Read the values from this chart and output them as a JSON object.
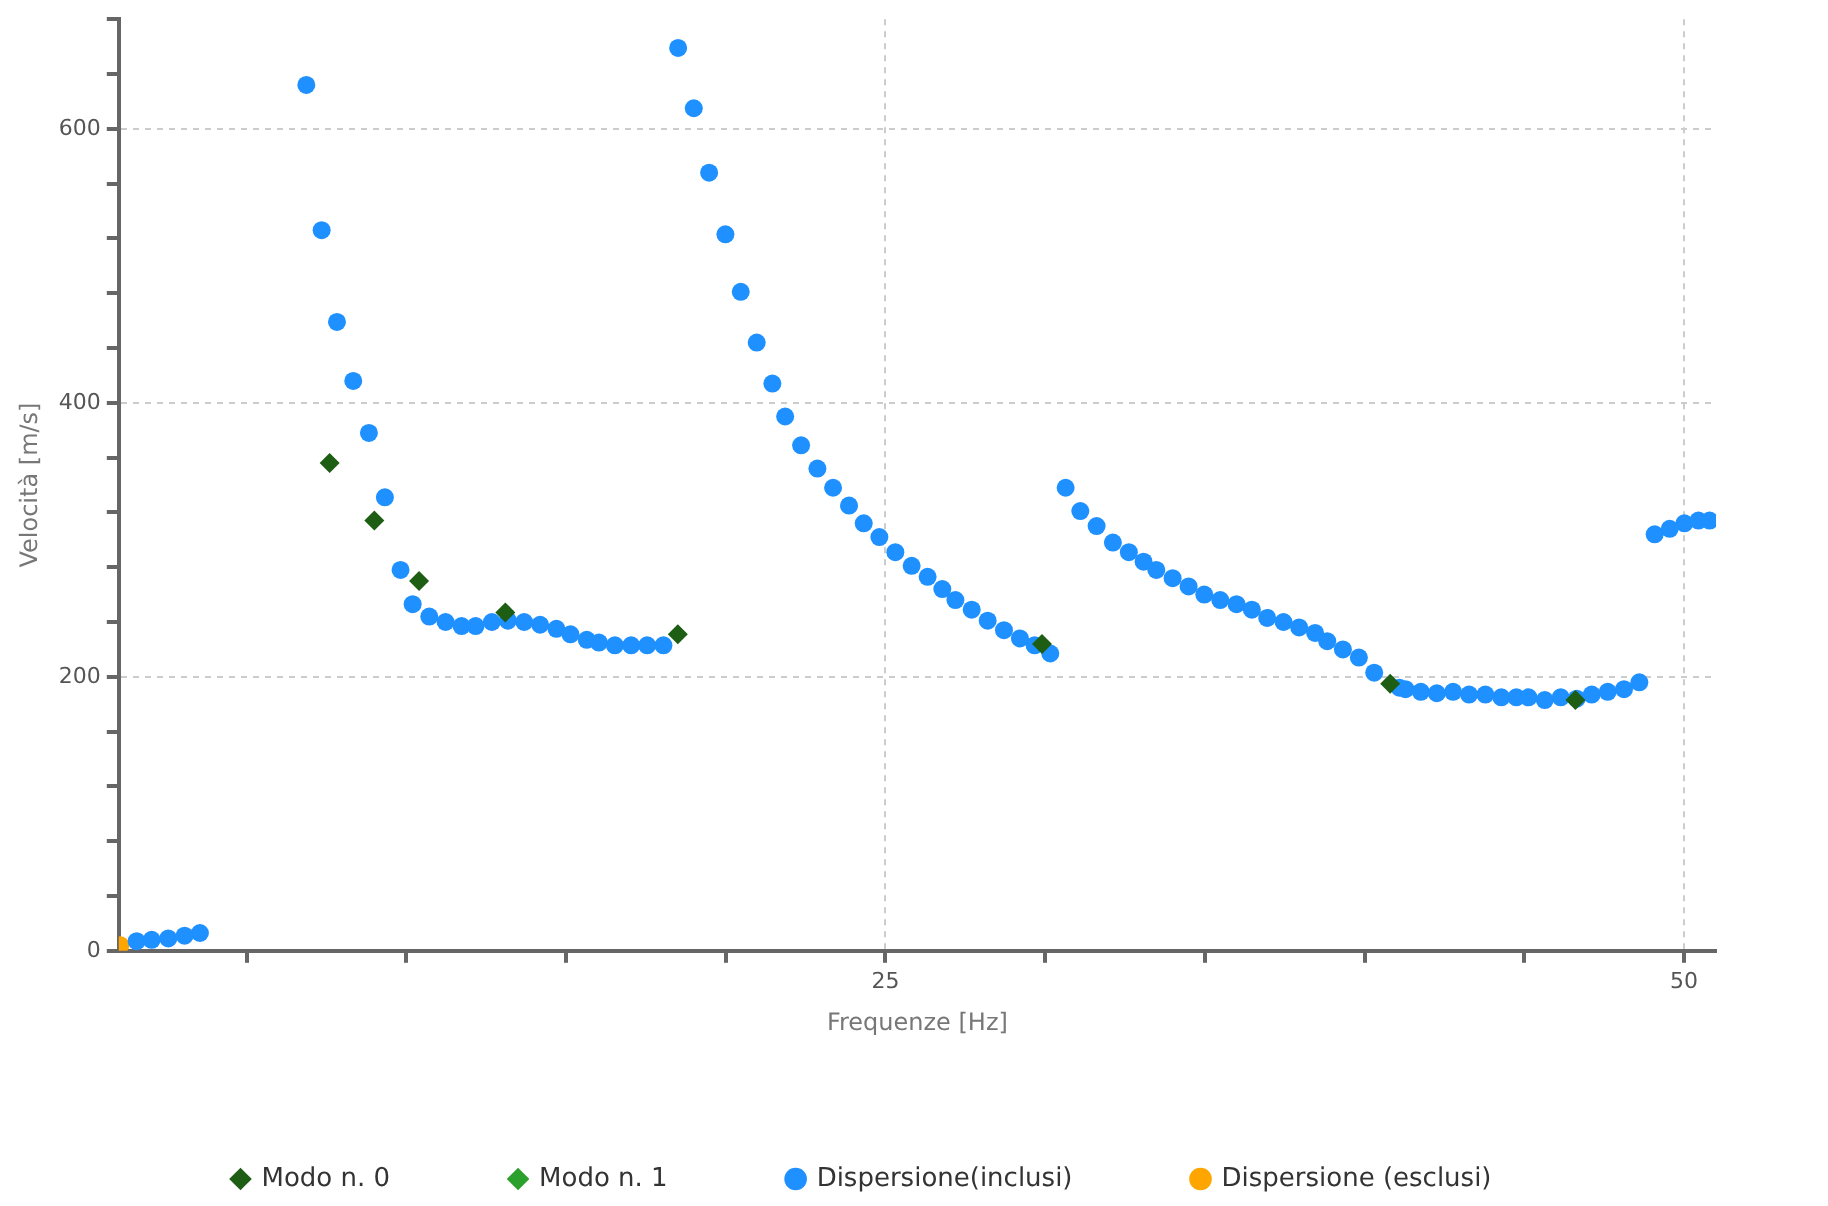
{
  "chart_data": {
    "type": "scatter",
    "xlabel": "Frequenze [Hz]",
    "ylabel": "Velocità [m/s]",
    "xlim": [
      1,
      51
    ],
    "xticks": [
      {
        "value": 5,
        "label": null
      },
      {
        "value": 10,
        "label": null
      },
      {
        "value": 15,
        "label": null
      },
      {
        "value": 20,
        "label": null
      },
      25,
      {
        "value": 30,
        "label": null
      },
      {
        "value": 35,
        "label": null
      },
      {
        "value": 40,
        "label": null
      },
      {
        "value": 45,
        "label": null
      },
      50
    ],
    "ylim": [
      0,
      680
    ],
    "yticks": [
      0,
      {
        "value": 40,
        "label": null
      },
      {
        "value": 80,
        "label": null
      },
      {
        "value": 120,
        "label": null
      },
      {
        "value": 160,
        "label": null
      },
      200,
      {
        "value": 240,
        "label": null
      },
      {
        "value": 280,
        "label": null
      },
      {
        "value": 320,
        "label": null
      },
      {
        "value": 360,
        "label": null
      },
      400,
      {
        "value": 440,
        "label": null
      },
      {
        "value": 480,
        "label": null
      },
      {
        "value": 520,
        "label": null
      },
      {
        "value": 560,
        "label": null
      },
      600,
      {
        "value": 640,
        "label": null
      },
      {
        "value": 680,
        "label": null
      }
    ],
    "grid": true,
    "legend": "bottom",
    "series": [
      {
        "name": "Modo n. 0",
        "color": "#1e5e14",
        "marker": "diamond",
        "x": [
          7.6,
          9.0,
          10.4,
          13.1,
          18.5,
          29.9,
          40.8,
          46.6
        ],
        "values": [
          356,
          314,
          270,
          247,
          231,
          224,
          195,
          183
        ]
      },
      {
        "name": "Modo n. 1",
        "color": "#2ca02c",
        "marker": "diamond"
      },
      {
        "name": "Dispersione(inclusi)",
        "color": "#1e90ff",
        "marker": "circle",
        "x": [
          1.56,
          2.03,
          2.55,
          3.06,
          3.54,
          6.87,
          7.35,
          7.83,
          8.34,
          8.83,
          9.33,
          9.82,
          10.2,
          10.72,
          11.23,
          11.73,
          12.17,
          12.68,
          13.18,
          13.69,
          14.19,
          14.7,
          15.14,
          15.65,
          16.03,
          16.53,
          17.04,
          17.54,
          18.05,
          18.51,
          19.0,
          19.48,
          19.99,
          20.47,
          20.97,
          21.46,
          21.86,
          22.36,
          22.87,
          23.36,
          23.86,
          24.32,
          24.81,
          25.31,
          25.82,
          26.32,
          26.78,
          27.19,
          27.7,
          28.2,
          28.71,
          29.21,
          29.67,
          30.16,
          30.64,
          31.1,
          31.61,
          32.12,
          32.62,
          33.08,
          33.48,
          33.99,
          34.49,
          34.98,
          35.48,
          35.99,
          36.47,
          36.95,
          37.46,
          37.95,
          38.45,
          38.83,
          39.32,
          39.82,
          40.3,
          41.09,
          41.28,
          41.76,
          42.26,
          42.77,
          43.27,
          43.78,
          44.28,
          44.75,
          45.13,
          45.64,
          46.14,
          46.64,
          47.11,
          47.61,
          48.12,
          48.6,
          49.08,
          49.55,
          50.01,
          50.45,
          50.8
        ],
        "values": [
          7,
          8,
          9,
          11,
          13,
          632,
          526,
          459,
          416,
          378,
          331,
          278,
          253,
          244,
          240,
          237,
          237,
          240,
          241,
          240,
          238,
          235,
          231,
          227,
          225,
          223,
          223,
          223,
          223,
          659,
          615,
          568,
          523,
          481,
          444,
          414,
          390,
          369,
          352,
          338,
          325,
          312,
          302,
          291,
          281,
          273,
          264,
          256,
          249,
          241,
          234,
          228,
          223,
          217,
          338,
          321,
          310,
          298,
          291,
          284,
          278,
          272,
          266,
          260,
          256,
          253,
          249,
          243,
          240,
          236,
          232,
          226,
          220,
          214,
          203,
          192,
          191,
          189,
          188,
          189,
          187,
          187,
          185,
          185,
          185,
          183,
          185,
          184,
          187,
          189,
          191,
          196,
          304,
          308,
          312,
          314,
          314
        ]
      },
      {
        "name": "Dispersione (esclusi)",
        "color": "#ffa500",
        "marker": "circle",
        "x": [
          1.05
        ],
        "values": [
          4
        ]
      }
    ]
  }
}
